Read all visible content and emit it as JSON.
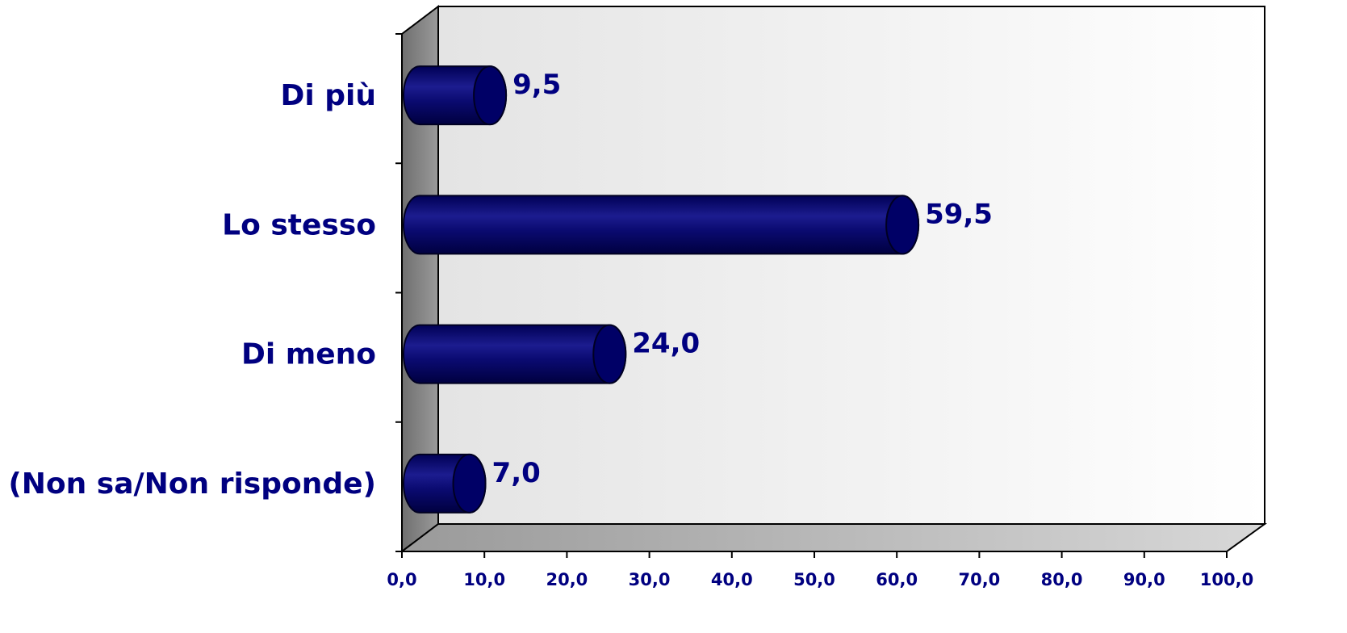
{
  "chart_data": {
    "type": "bar",
    "orientation": "horizontal",
    "style": "3d-cylinder",
    "categories": [
      "Di più",
      "Lo stesso",
      "Di meno",
      "(Non sa/Non risponde)"
    ],
    "values": [
      9.5,
      59.5,
      24.0,
      7.0
    ],
    "value_labels": [
      "9,5",
      "59,5",
      "24,0",
      "7,0"
    ],
    "xlim": [
      0,
      100
    ],
    "x_ticks": [
      0,
      10,
      20,
      30,
      40,
      50,
      60,
      70,
      80,
      90,
      100
    ],
    "x_tick_labels": [
      "0,0",
      "10,0",
      "20,0",
      "30,0",
      "40,0",
      "50,0",
      "60,0",
      "70,0",
      "80,0",
      "90,0",
      "100,0"
    ],
    "title": "",
    "xlabel": "",
    "ylabel": "",
    "grid": false,
    "legend": "none",
    "colors": {
      "bar": "#000066",
      "bar_light": "#1a1a8c",
      "text": "#000080",
      "wall": "#efefef",
      "side_wall": "#8a8a8a",
      "floor": "#bdbdbd",
      "axis": "#000000"
    }
  }
}
